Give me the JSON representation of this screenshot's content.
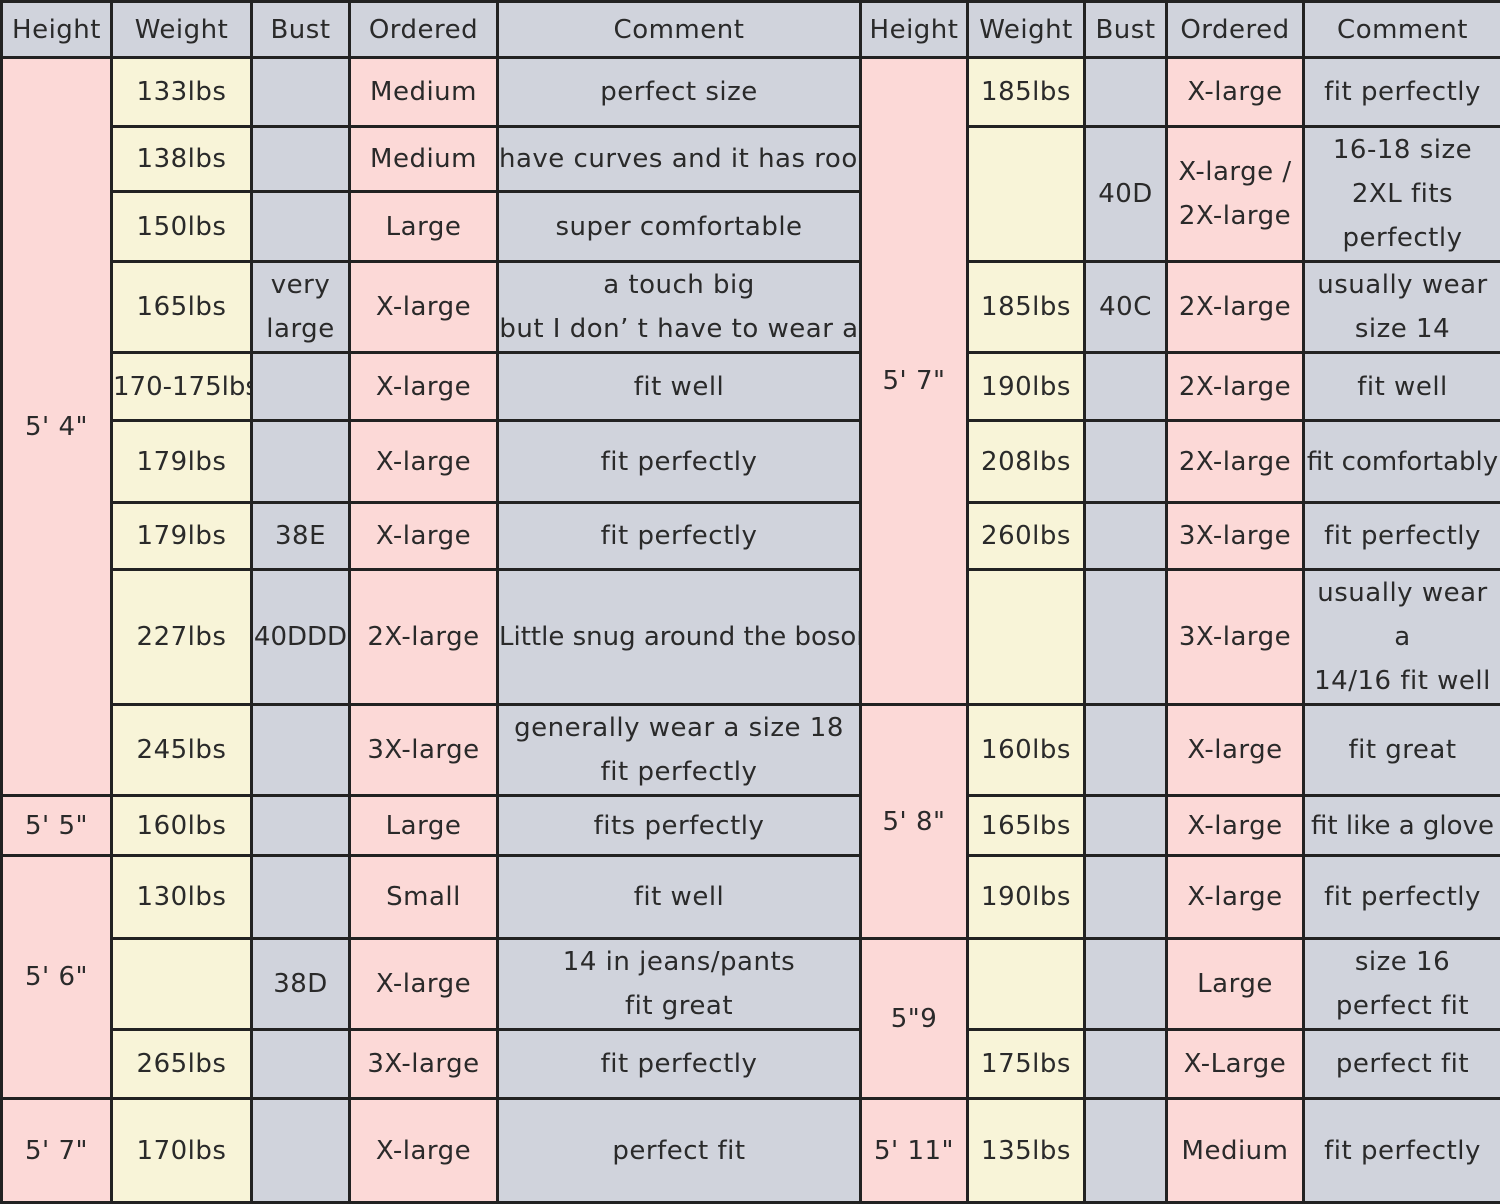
{
  "headers": [
    "Height",
    "Weight",
    "Bust",
    "Ordered",
    "Comment",
    "Height",
    "Weight",
    "Bust",
    "Ordered",
    "Comment"
  ],
  "left": {
    "heights": [
      "5' 4\"",
      "5' 5\"",
      "5' 6\"",
      "5' 7\""
    ],
    "rows": [
      {
        "weight": "133lbs",
        "bust": "",
        "ordered": "Medium",
        "comment": "perfect size"
      },
      {
        "weight": "138lbs",
        "bust": "",
        "ordered": "Medium",
        "comment": "have curves and it has room"
      },
      {
        "weight": "150lbs",
        "bust": "",
        "ordered": "Large",
        "comment": "super comfortable"
      },
      {
        "weight": "165lbs",
        "bust": "very\nlarge",
        "ordered": "X-large",
        "comment": "a touch big\nbut I don’ t have to wear a"
      },
      {
        "weight": "170-175lbs",
        "bust": "",
        "ordered": "X-large",
        "comment": "fit well"
      },
      {
        "weight": "179lbs",
        "bust": "",
        "ordered": "X-large",
        "comment": "fit perfectly"
      },
      {
        "weight": "179lbs",
        "bust": "38E",
        "ordered": "X-large",
        "comment": "fit perfectly"
      },
      {
        "weight": "227lbs",
        "bust": "40DDD",
        "ordered": "2X-large",
        "comment": "Little snug around the bosom"
      },
      {
        "weight": "245lbs",
        "bust": "",
        "ordered": "3X-large",
        "comment": "generally wear a size 18\nfit perfectly"
      },
      {
        "weight": "160lbs",
        "bust": "",
        "ordered": "Large",
        "comment": "fits perfectly"
      },
      {
        "weight": "130lbs",
        "bust": "",
        "ordered": "Small",
        "comment": "fit well"
      },
      {
        "weight": "",
        "bust": "38D",
        "ordered": "X-large",
        "comment": "14 in jeans/pants\nfit great"
      },
      {
        "weight": "265lbs",
        "bust": "",
        "ordered": "3X-large",
        "comment": "fit perfectly"
      },
      {
        "weight": "170lbs",
        "bust": "",
        "ordered": "X-large",
        "comment": "perfect fit"
      }
    ]
  },
  "right": {
    "heights": [
      "5' 7\"",
      "5' 8\"",
      "5\"9",
      "5' 11\""
    ],
    "rows": [
      {
        "weight": "185lbs",
        "bust": "",
        "ordered": "X-large",
        "comment": "fit perfectly"
      },
      {
        "weight": "",
        "bust": "40D",
        "ordered": "X-large /\n2X-large",
        "comment": "16-18 size\n2XL fits\nperfectly"
      },
      {
        "weight": "185lbs",
        "bust": "40C",
        "ordered": "2X-large",
        "comment": "usually wear\nsize 14"
      },
      {
        "weight": "190lbs",
        "bust": "",
        "ordered": "2X-large",
        "comment": "fit well"
      },
      {
        "weight": "208lbs",
        "bust": "",
        "ordered": "2X-large",
        "comment": "fit comfortably"
      },
      {
        "weight": "260lbs",
        "bust": "",
        "ordered": "3X-large",
        "comment": "fit perfectly"
      },
      {
        "weight": "",
        "bust": "",
        "ordered": "3X-large",
        "comment": "usually wear a\n14/16 fit well"
      },
      {
        "weight": "160lbs",
        "bust": "",
        "ordered": "X-large",
        "comment": "fit great"
      },
      {
        "weight": "165lbs",
        "bust": "",
        "ordered": "X-large",
        "comment": "fit like a glove"
      },
      {
        "weight": "190lbs",
        "bust": "",
        "ordered": "X-large",
        "comment": "fit perfectly"
      },
      {
        "weight": "",
        "bust": "",
        "ordered": "Large",
        "comment": "size 16\nperfect fit"
      },
      {
        "weight": "175lbs",
        "bust": "",
        "ordered": "X-Large",
        "comment": "perfect fit"
      },
      {
        "weight": "135lbs",
        "bust": "",
        "ordered": "Medium",
        "comment": "fit perfectly"
      }
    ]
  }
}
